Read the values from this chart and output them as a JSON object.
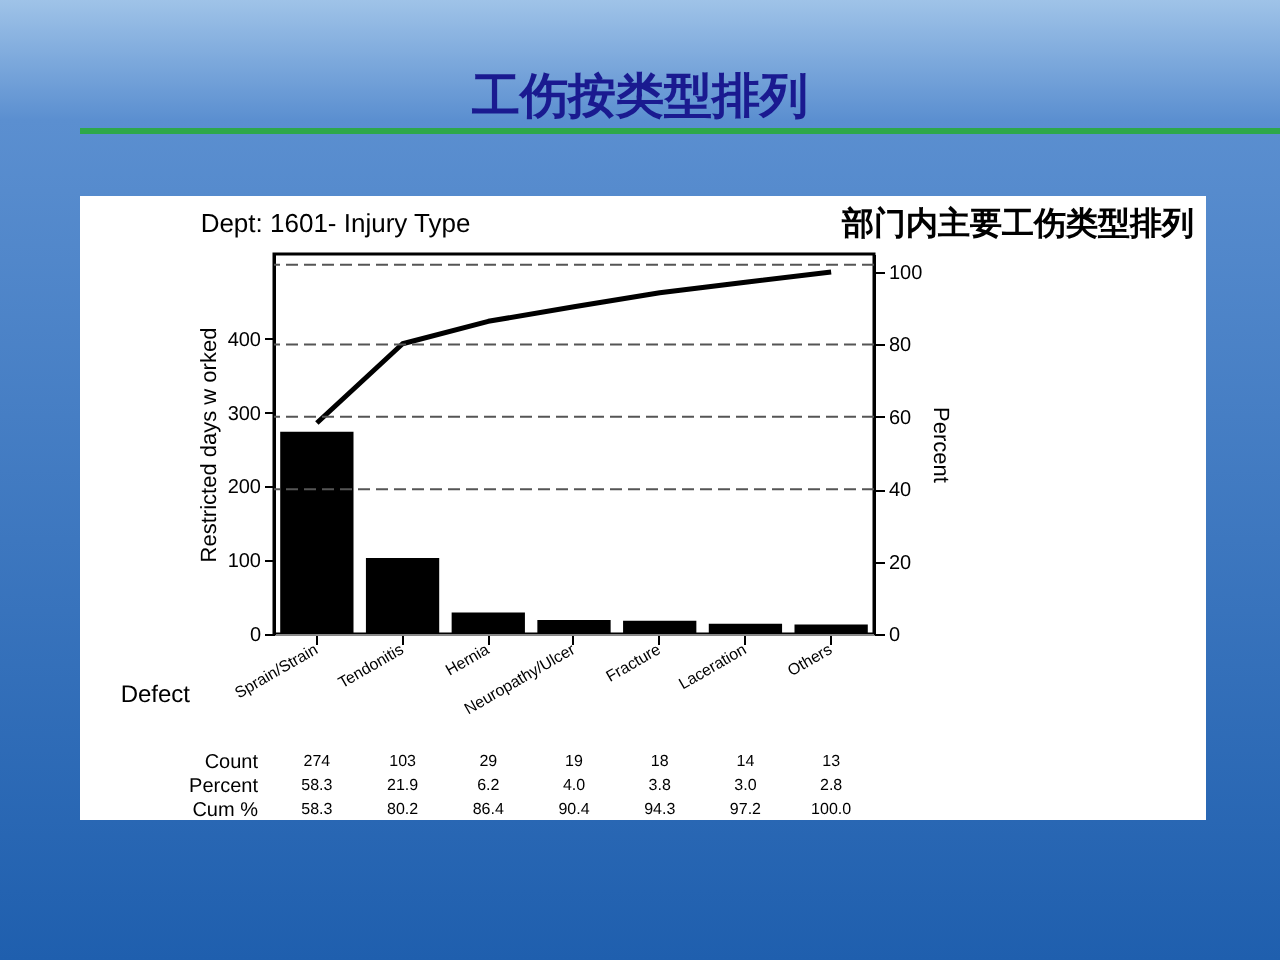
{
  "chart_data": {
    "type": "bar",
    "title": "工伤按类型排列",
    "subtitle": "Dept: 1601- Injury Type",
    "xlabel": "Defect",
    "ylabel": "Restricted days w orked",
    "y2label": "Percent",
    "categories": [
      "Sprain/Strain",
      "Tendonitis",
      "Hernia",
      "Neuropathy/Ulcer",
      "Fracture",
      "Laceration",
      "Others"
    ],
    "series": [
      {
        "color": "#000000",
        "values": [
          274,
          103,
          29,
          19,
          18,
          14,
          13
        ],
        "value_labels": [
          "274",
          "103",
          "29",
          "19",
          "18",
          "14",
          "13"
        ]
      },
      {
        "type": "line",
        "axis": "y2",
        "color": "#000000",
        "values": [
          58.3,
          80.2,
          86.4,
          90.4,
          94.3,
          97.2,
          100.0
        ],
        "value_labels": [
          "58.3",
          "80.2",
          "86.4",
          "90.4",
          "94.3",
          "97.2",
          "100.0"
        ]
      }
    ],
    "annotations": [
      "部门内主要工伤类型排列",
      "Count",
      "Percent",
      "Cum %",
      "58.3",
      "21.9",
      "6.2",
      "4.0",
      "3.8",
      "3.0",
      "2.8"
    ],
    "ylim": [
      0,
      515
    ],
    "yticks": [
      0,
      100,
      200,
      300,
      400
    ],
    "y2lim": [
      0,
      105
    ],
    "y2ticks": [
      0,
      20,
      40,
      60,
      80,
      100
    ],
    "ref_lines": [
      {
        "axis": "y2",
        "value": 40,
        "line_style": "dashed",
        "color": "#555555"
      },
      {
        "axis": "y2",
        "value": 60,
        "line_style": "dashed",
        "color": "#555555"
      },
      {
        "axis": "y2",
        "value": 80,
        "line_style": "dashed",
        "color": "#555555"
      },
      {
        "axis": "y2",
        "value": 102,
        "line_style": "dashed",
        "color": "#555555"
      }
    ],
    "marker": "none",
    "line_style": "solid"
  }
}
